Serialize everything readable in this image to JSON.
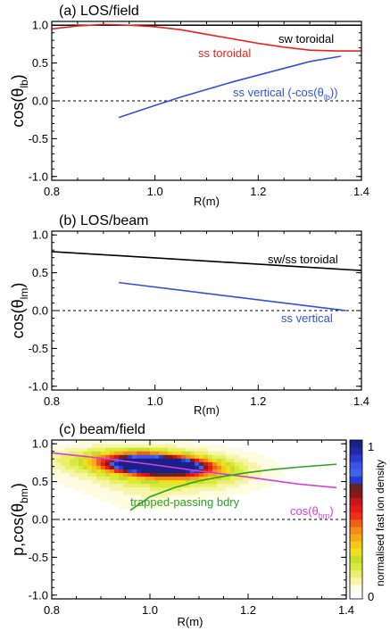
{
  "colors": {
    "black": "#000000",
    "red": "#e8241c",
    "blue": "#2f4fe0",
    "green": "#2aa12a",
    "magenta": "#d53fd8"
  },
  "chart_data": [
    {
      "type": "line",
      "title": "(a) LOS/field",
      "xlabel": "R(m)",
      "ylabel": "cos(θ_lb)",
      "ylabel_parts": {
        "base": "cos(θ",
        "sub": "lb",
        "close": ")"
      },
      "xlim": [
        0.8,
        1.4
      ],
      "ylim": [
        -1.05,
        1.05
      ],
      "xticks": [
        "0.8",
        "1.0",
        "1.2",
        "1.4"
      ],
      "yticks": [
        "1.0",
        "0.5",
        "0.0",
        "-0.5",
        "-1.0"
      ],
      "zero_line": "dashed",
      "series": [
        {
          "name": "sw toroidal",
          "color_key": "black",
          "x": [
            0.8,
            0.9,
            1.0,
            1.1,
            1.2,
            1.3,
            1.4
          ],
          "y": [
            1.0,
            1.0,
            1.0,
            1.0,
            1.0,
            1.0,
            1.0
          ]
        },
        {
          "name": "ss toroidal",
          "color_key": "red",
          "x": [
            0.8,
            0.85,
            0.9,
            0.95,
            1.0,
            1.05,
            1.1,
            1.15,
            1.2,
            1.25,
            1.3,
            1.35,
            1.4
          ],
          "y": [
            0.95,
            0.99,
            1.01,
            1.0,
            0.98,
            0.94,
            0.88,
            0.82,
            0.76,
            0.71,
            0.67,
            0.66,
            0.66
          ]
        },
        {
          "name": "ss vertical (-cos(θ_lb))",
          "color_key": "blue",
          "label_parts": {
            "pre": "ss vertical (-cos(θ",
            "sub": "lb",
            "post": "))"
          },
          "x": [
            0.93,
            1.0,
            1.05,
            1.1,
            1.15,
            1.2,
            1.25,
            1.3,
            1.36
          ],
          "y": [
            -0.22,
            -0.06,
            0.05,
            0.15,
            0.25,
            0.34,
            0.43,
            0.52,
            0.59
          ]
        }
      ]
    },
    {
      "type": "line",
      "title": "(b) LOS/beam",
      "xlabel": "R(m)",
      "ylabel": "cos(θ_lm)",
      "ylabel_parts": {
        "base": "cos(θ",
        "sub": "lm",
        "close": ")"
      },
      "xlim": [
        0.8,
        1.4
      ],
      "ylim": [
        -1.05,
        1.05
      ],
      "xticks": [
        "0.8",
        "1.0",
        "1.2",
        "1.4"
      ],
      "yticks": [
        "1.0",
        "0.5",
        "0.0",
        "-0.5",
        "-1.0"
      ],
      "zero_line": "dashed",
      "series": [
        {
          "name": "sw/ss toroidal",
          "color_key": "black",
          "x": [
            0.8,
            1.4
          ],
          "y": [
            0.78,
            0.53
          ]
        },
        {
          "name": "ss vertical",
          "color_key": "blue",
          "x": [
            0.93,
            1.37
          ],
          "y": [
            0.37,
            0.0
          ]
        }
      ]
    },
    {
      "type": "heatmap",
      "title": "(c) beam/field",
      "xlabel": "R(m)",
      "ylabel": "p,cos(θ_bm)",
      "ylabel_parts": {
        "base": "p,cos(θ",
        "sub": "bm",
        "close": ")"
      },
      "xlim": [
        0.8,
        1.4
      ],
      "ylim": [
        -1.05,
        1.05
      ],
      "xticks": [
        "0.8",
        "1.0",
        "1.2",
        "1.4"
      ],
      "yticks": [
        "1.0",
        "0.5",
        "0.0",
        "-0.5",
        "-1.0"
      ],
      "zero_line": "dashed",
      "colorbar": {
        "label": "normalised fast ion density",
        "range": [
          0,
          1
        ],
        "ticks": [
          "1",
          "0"
        ],
        "colors": [
          "#ffffff",
          "#fdfbe0",
          "#f6f5a8",
          "#eaf06a",
          "#d9ea3a",
          "#c7de2a",
          "#f0e020",
          "#f5c818",
          "#f7a818",
          "#f48a18",
          "#f06018",
          "#ee3018",
          "#e81818",
          "#c61818",
          "#8a1818",
          "#6a2222",
          "#2a3ad8",
          "#3f63ea",
          "#3a54e6",
          "#2b3bcc",
          "#1e2aa8",
          "#1a2088"
        ]
      },
      "density_blobs": [
        {
          "x": 1.02,
          "y": 0.72,
          "sx": 0.055,
          "sy": 0.06,
          "peak": 1.0
        },
        {
          "x": 0.98,
          "y": 0.78,
          "sx": 0.06,
          "sy": 0.08,
          "peak": 0.6
        },
        {
          "x": 1.05,
          "y": 0.65,
          "sx": 0.07,
          "sy": 0.09,
          "peak": 0.45
        },
        {
          "x": 1.0,
          "y": 0.7,
          "sx": 0.16,
          "sy": 0.22,
          "peak": 0.12
        },
        {
          "x": 0.92,
          "y": 0.82,
          "sx": 0.12,
          "sy": 0.12,
          "peak": 0.1
        },
        {
          "x": 1.1,
          "y": 0.55,
          "sx": 0.1,
          "sy": 0.18,
          "peak": 0.08
        },
        {
          "x": 0.98,
          "y": 0.3,
          "sx": 0.08,
          "sy": 0.25,
          "peak": 0.05
        }
      ],
      "series": [
        {
          "name": "cos(θ_bm)",
          "color_key": "magenta",
          "label_parts": {
            "pre": "cos(θ",
            "sub": "bm",
            "post": ")"
          },
          "x": [
            0.8,
            0.9,
            1.0,
            1.1,
            1.2,
            1.3,
            1.38
          ],
          "y": [
            0.88,
            0.81,
            0.73,
            0.64,
            0.56,
            0.47,
            0.42
          ]
        },
        {
          "name": "trapped-passing bdry",
          "color_key": "green",
          "x": [
            0.96,
            1.0,
            1.05,
            1.1,
            1.15,
            1.2,
            1.25,
            1.3,
            1.38
          ],
          "y": [
            0.12,
            0.3,
            0.42,
            0.51,
            0.57,
            0.62,
            0.66,
            0.69,
            0.73
          ]
        }
      ]
    }
  ]
}
